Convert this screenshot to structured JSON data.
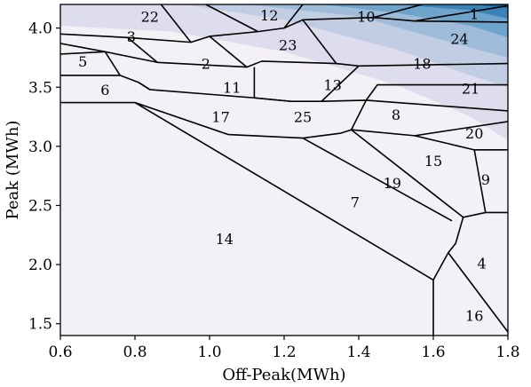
{
  "chart_data": {
    "type": "voronoi-partition",
    "xlabel": "Off-Peak(MWh)",
    "ylabel": "Peak (MWh)",
    "xlim": [
      0.6,
      1.8
    ],
    "ylim": [
      1.4,
      4.2
    ],
    "xticks": [
      0.6,
      0.8,
      1.0,
      1.2,
      1.4,
      1.6,
      1.8
    ],
    "yticks": [
      1.5,
      2.0,
      2.5,
      3.0,
      3.5,
      4.0
    ],
    "xtick_labels": [
      "0.6",
      "0.8",
      "1.0",
      "1.2",
      "1.4",
      "1.6",
      "1.8"
    ],
    "ytick_labels": [
      "1.5",
      "2.0",
      "2.5",
      "3.0",
      "3.5",
      "4.0"
    ],
    "background_bands": [
      {
        "color": "#f3f0f6",
        "boundary": [
          [
            0.6,
            3.75
          ],
          [
            0.9,
            3.68
          ],
          [
            1.2,
            3.47
          ],
          [
            1.5,
            3.18
          ],
          [
            1.7,
            2.85
          ],
          [
            1.8,
            2.25
          ]
        ]
      },
      {
        "color": "#dedded",
        "boundary": [
          [
            0.6,
            4.02
          ],
          [
            0.9,
            3.97
          ],
          [
            1.2,
            3.8
          ],
          [
            1.5,
            3.52
          ],
          [
            1.7,
            3.25
          ],
          [
            1.8,
            3.05
          ]
        ]
      },
      {
        "color": "#c0cde3",
        "boundary": [
          [
            0.93,
            4.2
          ],
          [
            1.2,
            4.07
          ],
          [
            1.5,
            3.82
          ],
          [
            1.7,
            3.6
          ],
          [
            1.8,
            3.5
          ]
        ]
      },
      {
        "color": "#9ebcd9",
        "boundary": [
          [
            1.1,
            4.2
          ],
          [
            1.4,
            4.1
          ],
          [
            1.6,
            3.92
          ],
          [
            1.8,
            3.75
          ]
        ]
      },
      {
        "color": "#6ea3cc",
        "boundary": [
          [
            1.3,
            4.2
          ],
          [
            1.5,
            4.13
          ],
          [
            1.7,
            4.02
          ],
          [
            1.8,
            3.92
          ]
        ]
      },
      {
        "color": "#3b82b8",
        "boundary": [
          [
            1.5,
            4.2
          ],
          [
            1.7,
            4.15
          ],
          [
            1.8,
            4.08
          ]
        ]
      },
      {
        "color": "#1b63a0",
        "boundary": [
          [
            1.7,
            4.2
          ],
          [
            1.8,
            4.17
          ]
        ]
      }
    ],
    "cell_edges": [
      [
        [
          0.6,
          3.87
        ],
        [
          0.72,
          3.8
        ],
        [
          0.86,
          3.71
        ],
        [
          1.1,
          3.67
        ],
        [
          1.14,
          3.72
        ],
        [
          1.34,
          3.7
        ],
        [
          1.4,
          3.68
        ],
        [
          1.8,
          3.7
        ]
      ],
      [
        [
          0.6,
          3.6
        ],
        [
          0.76,
          3.6
        ],
        [
          0.81,
          3.54
        ],
        [
          0.84,
          3.48
        ],
        [
          1.12,
          3.41
        ],
        [
          1.22,
          3.38
        ],
        [
          1.3,
          3.38
        ],
        [
          1.42,
          3.39
        ],
        [
          1.8,
          3.3
        ]
      ],
      [
        [
          0.6,
          3.37
        ],
        [
          0.8,
          3.37
        ],
        [
          1.05,
          3.1
        ],
        [
          1.25,
          3.07
        ],
        [
          1.35,
          3.11
        ],
        [
          1.38,
          3.14
        ],
        [
          1.55,
          3.09
        ],
        [
          1.8,
          3.21
        ]
      ],
      [
        [
          0.8,
          3.37
        ],
        [
          1.6,
          1.87
        ],
        [
          1.6,
          1.4
        ]
      ],
      [
        [
          1.25,
          3.07
        ],
        [
          1.65,
          2.37
        ]
      ],
      [
        [
          1.38,
          3.14
        ],
        [
          1.68,
          2.4
        ],
        [
          1.66,
          2.18
        ],
        [
          1.64,
          2.1
        ],
        [
          1.6,
          1.87
        ]
      ],
      [
        [
          1.64,
          2.1
        ],
        [
          1.8,
          1.43
        ]
      ],
      [
        [
          1.55,
          3.09
        ],
        [
          1.71,
          2.97
        ],
        [
          1.8,
          2.97
        ]
      ],
      [
        [
          1.71,
          2.97
        ],
        [
          1.74,
          2.44
        ],
        [
          1.8,
          2.44
        ]
      ],
      [
        [
          1.68,
          2.4
        ],
        [
          1.74,
          2.44
        ]
      ],
      [
        [
          0.86,
          3.71
        ],
        [
          0.78,
          3.92
        ],
        [
          0.6,
          3.95
        ]
      ],
      [
        [
          0.72,
          3.8
        ],
        [
          0.6,
          3.78
        ]
      ],
      [
        [
          0.76,
          3.6
        ],
        [
          0.72,
          3.8
        ]
      ],
      [
        [
          0.81,
          3.54
        ],
        [
          0.84,
          3.48
        ]
      ],
      [
        [
          0.78,
          3.92
        ],
        [
          0.95,
          3.88
        ],
        [
          1.0,
          3.93
        ],
        [
          1.13,
          3.97
        ],
        [
          1.2,
          4.0
        ],
        [
          1.25,
          4.07
        ],
        [
          1.44,
          4.09
        ],
        [
          1.55,
          4.06
        ],
        [
          1.8,
          4.05
        ]
      ],
      [
        [
          0.95,
          3.88
        ],
        [
          0.87,
          4.2
        ]
      ],
      [
        [
          1.0,
          3.93
        ],
        [
          1.1,
          3.67
        ]
      ],
      [
        [
          1.13,
          3.97
        ],
        [
          0.99,
          4.2
        ]
      ],
      [
        [
          1.2,
          4.0
        ],
        [
          1.25,
          4.2
        ]
      ],
      [
        [
          1.25,
          4.07
        ],
        [
          1.34,
          3.7
        ]
      ],
      [
        [
          1.44,
          4.09
        ],
        [
          1.57,
          4.2
        ]
      ],
      [
        [
          1.55,
          4.06
        ],
        [
          1.82,
          4.2
        ]
      ],
      [
        [
          1.22,
          3.38
        ],
        [
          1.12,
          3.41
        ]
      ],
      [
        [
          1.3,
          3.38
        ],
        [
          1.4,
          3.68
        ]
      ],
      [
        [
          1.42,
          3.39
        ],
        [
          1.45,
          3.52
        ],
        [
          1.8,
          3.52
        ]
      ],
      [
        [
          1.42,
          3.39
        ],
        [
          1.38,
          3.14
        ]
      ],
      [
        [
          1.12,
          3.41
        ],
        [
          1.12,
          3.67
        ]
      ]
    ],
    "cell_labels": [
      {
        "label": "1",
        "x": 1.71,
        "y": 4.12
      },
      {
        "label": "2",
        "x": 0.99,
        "y": 3.7
      },
      {
        "label": "3",
        "x": 0.79,
        "y": 3.93
      },
      {
        "label": "4",
        "x": 1.73,
        "y": 2.01
      },
      {
        "label": "5",
        "x": 0.66,
        "y": 3.72
      },
      {
        "label": "6",
        "x": 0.72,
        "y": 3.48
      },
      {
        "label": "7",
        "x": 1.39,
        "y": 2.53
      },
      {
        "label": "8",
        "x": 1.5,
        "y": 3.27
      },
      {
        "label": "9",
        "x": 1.74,
        "y": 2.72
      },
      {
        "label": "10",
        "x": 1.42,
        "y": 4.1
      },
      {
        "label": "11",
        "x": 1.06,
        "y": 3.5
      },
      {
        "label": "12",
        "x": 1.16,
        "y": 4.11
      },
      {
        "label": "13",
        "x": 1.33,
        "y": 3.52
      },
      {
        "label": "14",
        "x": 1.04,
        "y": 2.22
      },
      {
        "label": "15",
        "x": 1.6,
        "y": 2.88
      },
      {
        "label": "16",
        "x": 1.71,
        "y": 1.57
      },
      {
        "label": "17",
        "x": 1.03,
        "y": 3.25
      },
      {
        "label": "18",
        "x": 1.57,
        "y": 3.7
      },
      {
        "label": "19",
        "x": 1.49,
        "y": 2.69
      },
      {
        "label": "20",
        "x": 1.71,
        "y": 3.11
      },
      {
        "label": "21",
        "x": 1.7,
        "y": 3.49
      },
      {
        "label": "22",
        "x": 0.84,
        "y": 4.1
      },
      {
        "label": "23",
        "x": 1.21,
        "y": 3.86
      },
      {
        "label": "24",
        "x": 1.67,
        "y": 3.91
      },
      {
        "label": "25",
        "x": 1.25,
        "y": 3.25
      }
    ]
  }
}
